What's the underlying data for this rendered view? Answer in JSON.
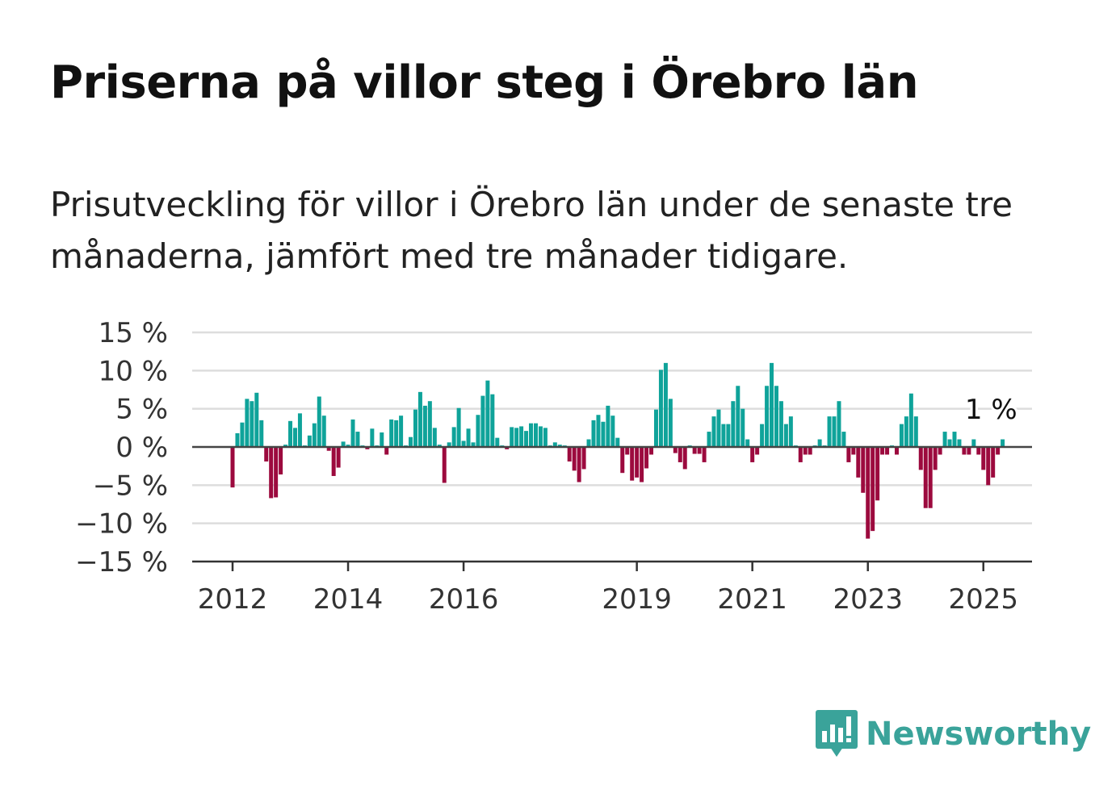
{
  "title": "Priserna på villor steg i Örebro län",
  "subtitle": "Prisutveckling för villor i Örebro län under de senaste tre månaderna, jämfört med tre månader tidigare.",
  "brand": {
    "name": "Newsworthy",
    "logo_icon": "bar-chart-speech-bubble-icon",
    "color": "#3aa39a"
  },
  "colors": {
    "positive": "#0fa39a",
    "negative": "#9c0a3e",
    "highlight": "#00a399",
    "grid": "#dddddd",
    "axis": "#444444"
  },
  "chart_data": {
    "type": "bar",
    "title": "",
    "xlabel": "",
    "ylabel": "",
    "ylim": [
      -15,
      15
    ],
    "y_ticks": [
      {
        "value": 15,
        "label": "15 %"
      },
      {
        "value": 10,
        "label": "10 %"
      },
      {
        "value": 5,
        "label": "5 %"
      },
      {
        "value": 0,
        "label": "0 %"
      },
      {
        "value": -5,
        "label": "−5 %"
      },
      {
        "value": -10,
        "label": "−10 %"
      },
      {
        "value": -15,
        "label": "−15 %"
      }
    ],
    "x_ticks": [
      {
        "index": 0,
        "label": "2012"
      },
      {
        "index": 24,
        "label": "2014"
      },
      {
        "index": 48,
        "label": "2016"
      },
      {
        "index": 84,
        "label": "2019"
      },
      {
        "index": 108,
        "label": "2021"
      },
      {
        "index": 132,
        "label": "2023"
      },
      {
        "index": 156,
        "label": "2025"
      }
    ],
    "annotation": {
      "text": "1 %",
      "index": 158
    },
    "grid": true,
    "values": [
      -5.3,
      1.8,
      3.2,
      6.3,
      6.0,
      7.1,
      3.5,
      -1.9,
      -6.7,
      -6.6,
      -3.6,
      0.3,
      3.4,
      2.5,
      4.4,
      0.2,
      1.5,
      3.1,
      6.6,
      4.1,
      -0.5,
      -3.8,
      -2.7,
      0.7,
      0.3,
      3.6,
      2.0,
      0.2,
      -0.3,
      2.4,
      0.2,
      1.9,
      -1.0,
      3.6,
      3.5,
      4.1,
      0.2,
      1.3,
      4.9,
      7.2,
      5.4,
      6.0,
      2.5,
      0.3,
      -4.7,
      0.6,
      2.6,
      5.1,
      0.8,
      2.4,
      0.6,
      4.2,
      6.7,
      8.7,
      6.9,
      1.2,
      0.2,
      -0.3,
      2.6,
      2.5,
      2.7,
      2.1,
      3.1,
      3.1,
      2.7,
      2.5,
      0.2,
      0.6,
      0.3,
      0.2,
      -1.9,
      -3.1,
      -4.6,
      -2.9,
      1.0,
      3.5,
      4.2,
      3.3,
      5.4,
      4.1,
      1.2,
      -3.4,
      -1.0,
      -4.4,
      -4.0,
      -4.6,
      -2.8,
      -1.0,
      4.9,
      10.1,
      11.0,
      6.3,
      -0.8,
      -2.0,
      -2.9,
      0.2,
      -0.9,
      -0.9,
      -2.0,
      2.0,
      4.0,
      4.9,
      3.0,
      3.0,
      6.0,
      8.0,
      5.0,
      1.0,
      -2.0,
      -1.0,
      3.0,
      8.0,
      11.0,
      8.0,
      6.0,
      3.0,
      4.0,
      0.2,
      -2.0,
      -1.0,
      -1.0,
      0.2,
      1.0,
      0.2,
      4.0,
      4.0,
      6.0,
      2.0,
      -2.0,
      -1.0,
      -4.0,
      -6.0,
      -12.0,
      -11.0,
      -7.0,
      -1.0,
      -1.0,
      0.2,
      -1.0,
      3.0,
      4.0,
      7.0,
      4.0,
      -3.0,
      -8.0,
      -8.0,
      -3.0,
      -1.0,
      2.0,
      1.0,
      2.0,
      1.0,
      -1.0,
      -1.0,
      1.0,
      -1.0,
      -3.0,
      -5.0,
      -4.0,
      -1.0,
      1.0
    ]
  }
}
